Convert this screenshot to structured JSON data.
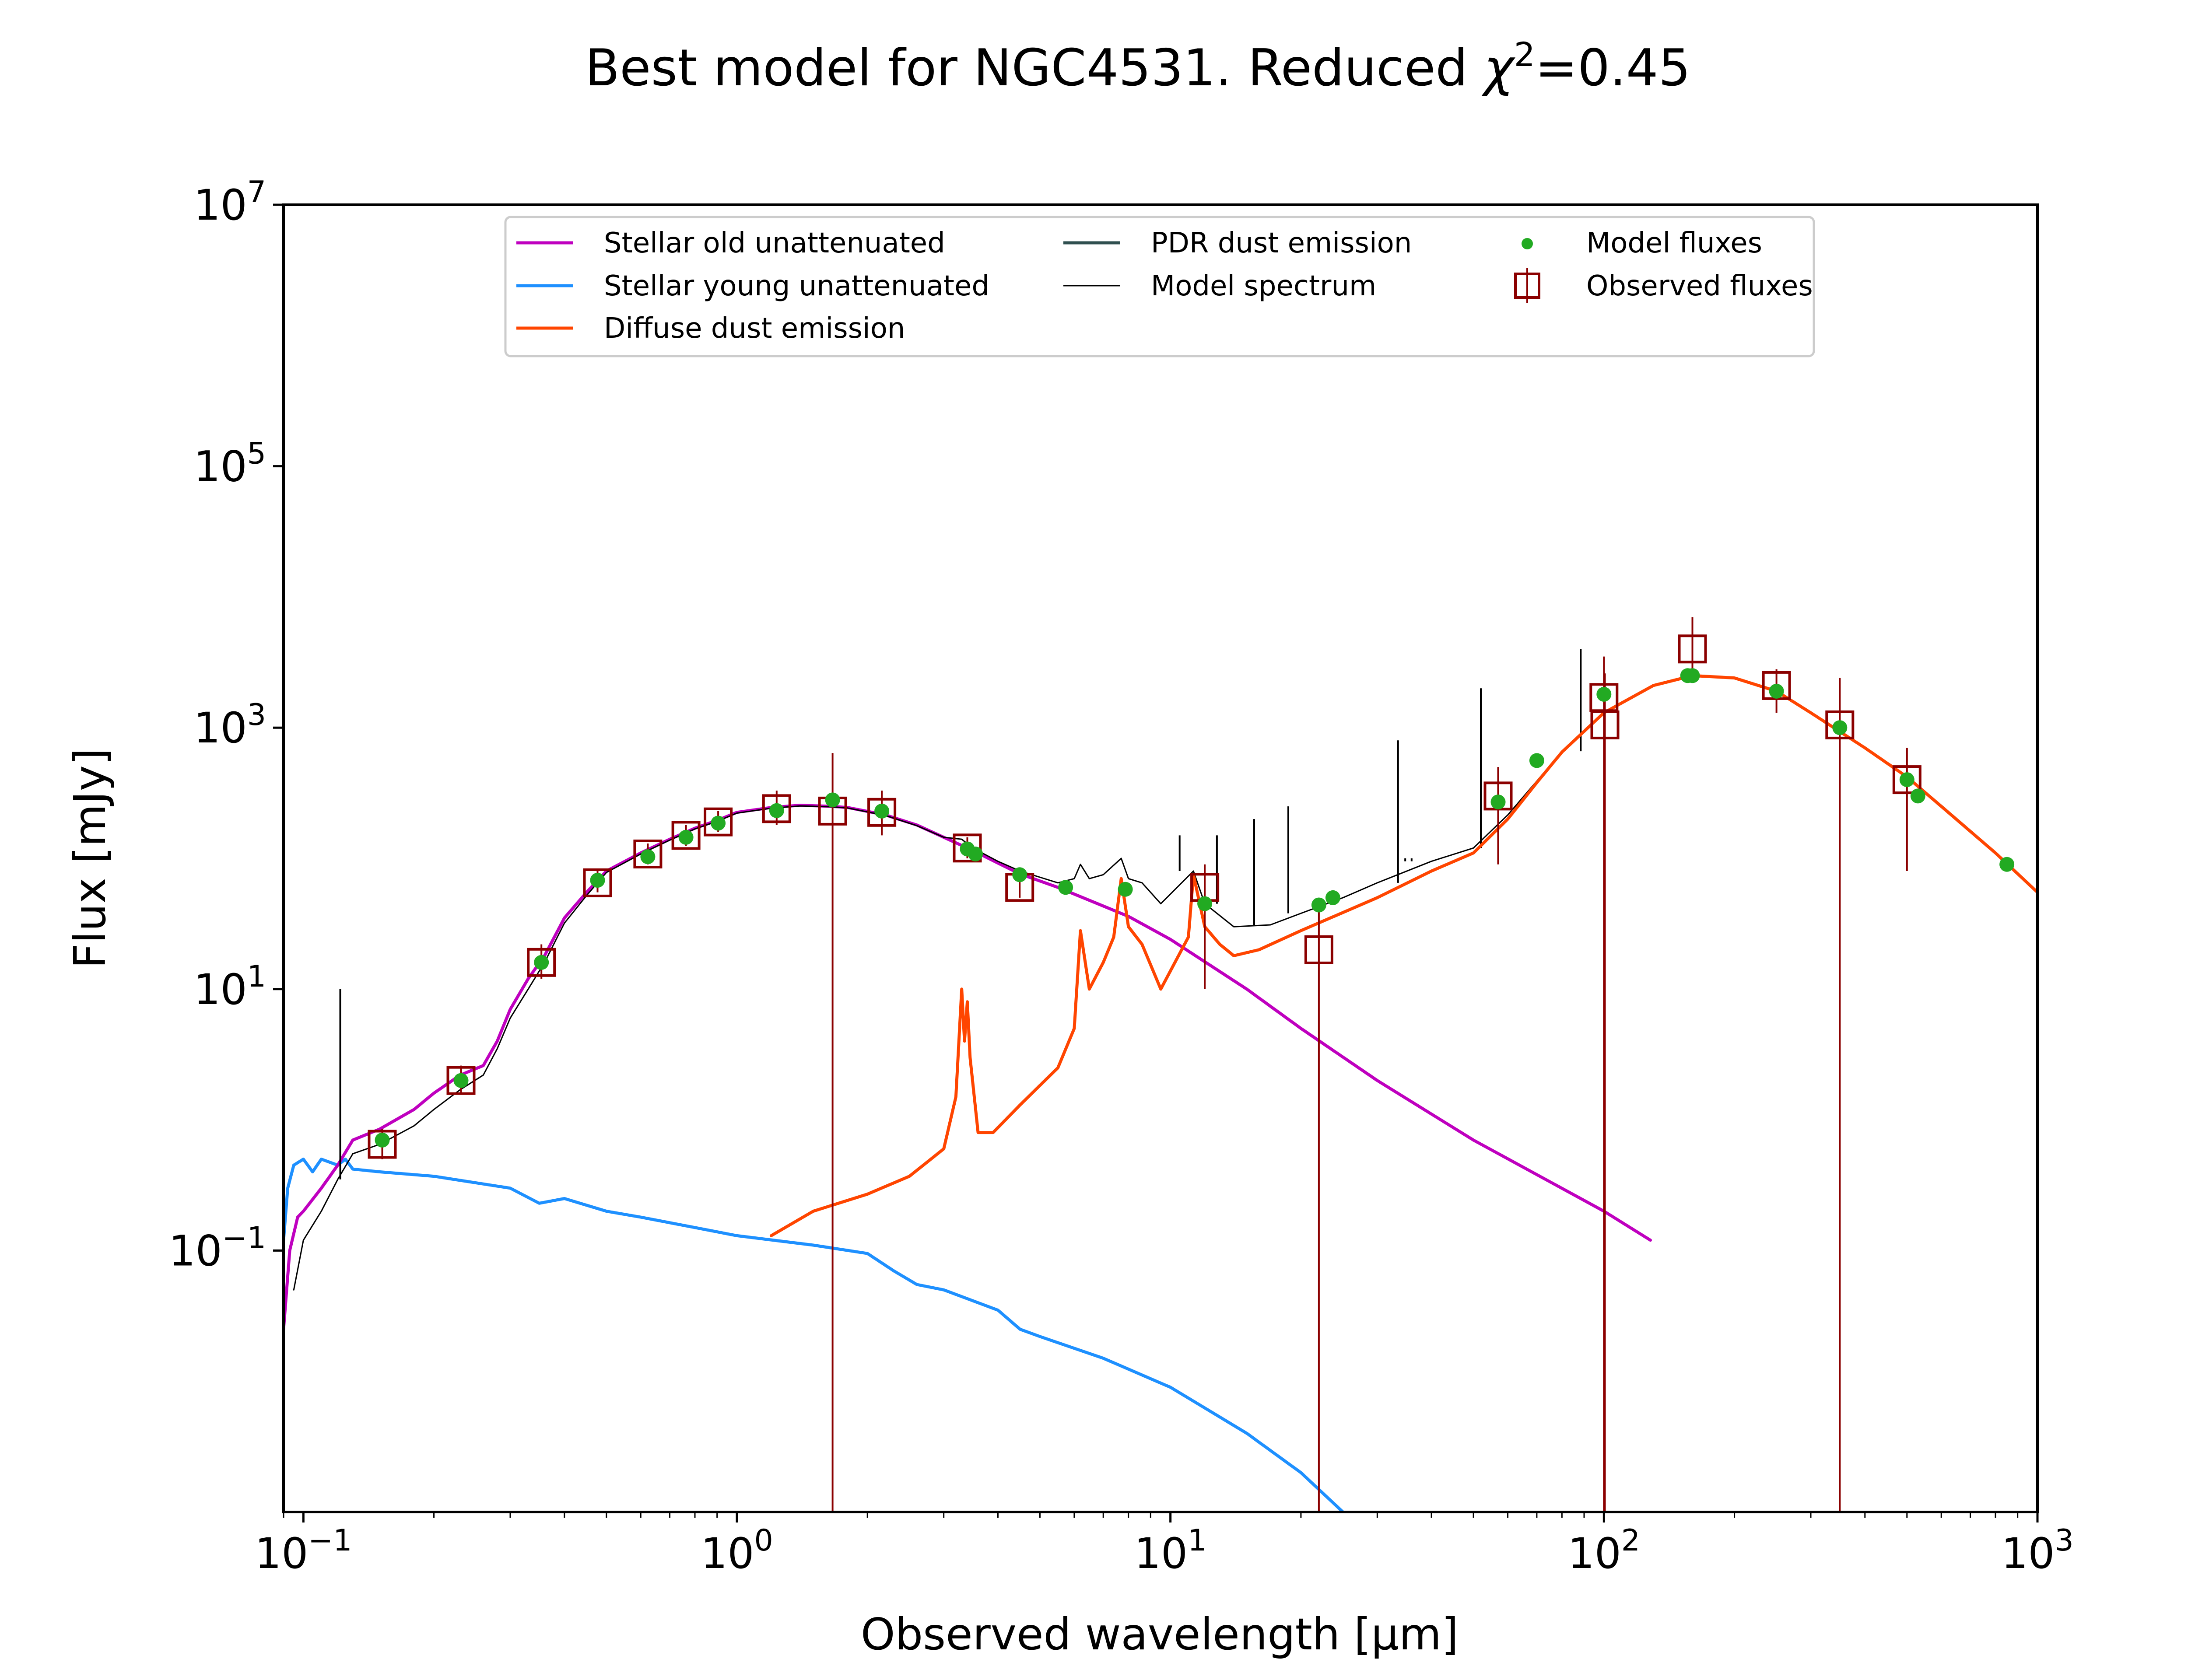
{
  "chart_data": {
    "type": "line",
    "title": "Best model for NGC4531. Reduced χ²=0.45",
    "title_parts": {
      "main": "Best model for NGC4531. Reduced ",
      "chi": "χ",
      "sup": "2",
      "tail": "=0.45"
    },
    "xlabel": "Observed wavelength [μm]",
    "ylabel": "Flux [mJy]",
    "xscale": "log",
    "yscale": "log",
    "xlim": [
      0.09,
      1000
    ],
    "ylim": [
      0.001,
      10000000
    ],
    "grid": false,
    "legend_position": "top-center",
    "x_ticks": [
      {
        "value": 0.1,
        "base": "10",
        "exp": "−1"
      },
      {
        "value": 1,
        "base": "10",
        "exp": "0"
      },
      {
        "value": 10,
        "base": "10",
        "exp": "1"
      },
      {
        "value": 100,
        "base": "10",
        "exp": "2"
      },
      {
        "value": 1000,
        "base": "10",
        "exp": "3"
      }
    ],
    "y_ticks": [
      {
        "value": 0.1,
        "base": "10",
        "exp": "−1"
      },
      {
        "value": 10,
        "base": "10",
        "exp": "1"
      },
      {
        "value": 1000,
        "base": "10",
        "exp": "3"
      },
      {
        "value": 100000,
        "base": "10",
        "exp": "5"
      },
      {
        "value": 10000000,
        "base": "10",
        "exp": "7"
      }
    ],
    "series": [
      {
        "name": "Stellar old unattenuated",
        "color": "#bf00bf",
        "points": [
          [
            0.09,
            0.025
          ],
          [
            0.093,
            0.1
          ],
          [
            0.097,
            0.18
          ],
          [
            0.1,
            0.2
          ],
          [
            0.11,
            0.3
          ],
          [
            0.12,
            0.45
          ],
          [
            0.13,
            0.7
          ],
          [
            0.15,
            0.85
          ],
          [
            0.18,
            1.2
          ],
          [
            0.2,
            1.6
          ],
          [
            0.23,
            2.2
          ],
          [
            0.26,
            2.6
          ],
          [
            0.28,
            4
          ],
          [
            0.3,
            7
          ],
          [
            0.33,
            12
          ],
          [
            0.36,
            18
          ],
          [
            0.4,
            35
          ],
          [
            0.45,
            55
          ],
          [
            0.5,
            80
          ],
          [
            0.6,
            110
          ],
          [
            0.7,
            140
          ],
          [
            0.8,
            170
          ],
          [
            0.9,
            195
          ],
          [
            1.0,
            225
          ],
          [
            1.2,
            245
          ],
          [
            1.4,
            255
          ],
          [
            1.65,
            250
          ],
          [
            1.8,
            245
          ],
          [
            2.2,
            215
          ],
          [
            2.6,
            180
          ],
          [
            3.0,
            145
          ],
          [
            3.5,
            115
          ],
          [
            4.0,
            92
          ],
          [
            4.5,
            76
          ],
          [
            5.5,
            60
          ],
          [
            8.0,
            36
          ],
          [
            10,
            24
          ],
          [
            15,
            10
          ],
          [
            20,
            5
          ],
          [
            30,
            2
          ],
          [
            50,
            0.7
          ],
          [
            100,
            0.2
          ],
          [
            128,
            0.12
          ]
        ]
      },
      {
        "name": "Stellar young unattenuated",
        "color": "#1e90ff",
        "points": [
          [
            0.09,
            0.12
          ],
          [
            0.092,
            0.3
          ],
          [
            0.095,
            0.45
          ],
          [
            0.1,
            0.5
          ],
          [
            0.105,
            0.4
          ],
          [
            0.11,
            0.5
          ],
          [
            0.12,
            0.45
          ],
          [
            0.125,
            0.5
          ],
          [
            0.13,
            0.42
          ],
          [
            0.15,
            0.4
          ],
          [
            0.2,
            0.37
          ],
          [
            0.3,
            0.3
          ],
          [
            0.35,
            0.23
          ],
          [
            0.4,
            0.25
          ],
          [
            0.5,
            0.2
          ],
          [
            0.6,
            0.18
          ],
          [
            0.8,
            0.15
          ],
          [
            1.0,
            0.13
          ],
          [
            1.5,
            0.11
          ],
          [
            2.0,
            0.095
          ],
          [
            2.3,
            0.07
          ],
          [
            2.6,
            0.055
          ],
          [
            3.0,
            0.05
          ],
          [
            4.0,
            0.035
          ],
          [
            4.5,
            0.025
          ],
          [
            5.0,
            0.022
          ],
          [
            7.0,
            0.015
          ],
          [
            10,
            0.009
          ],
          [
            15,
            0.004
          ],
          [
            20,
            0.002
          ],
          [
            25,
            0.001
          ]
        ]
      },
      {
        "name": "Diffuse dust emission",
        "color": "#ff4500",
        "points": [
          [
            1.2,
            0.13
          ],
          [
            1.5,
            0.2
          ],
          [
            2.0,
            0.27
          ],
          [
            2.5,
            0.37
          ],
          [
            3.0,
            0.6
          ],
          [
            3.2,
            1.5
          ],
          [
            3.3,
            10
          ],
          [
            3.35,
            4
          ],
          [
            3.4,
            8
          ],
          [
            3.45,
            3
          ],
          [
            3.6,
            0.8
          ],
          [
            3.9,
            0.8
          ],
          [
            4.5,
            1.3
          ],
          [
            5.5,
            2.5
          ],
          [
            6.0,
            5
          ],
          [
            6.2,
            28
          ],
          [
            6.5,
            10
          ],
          [
            7.0,
            16
          ],
          [
            7.4,
            25
          ],
          [
            7.7,
            70
          ],
          [
            8.0,
            30
          ],
          [
            8.6,
            22
          ],
          [
            9.5,
            10
          ],
          [
            11.0,
            25
          ],
          [
            11.3,
            75
          ],
          [
            12.0,
            30
          ],
          [
            13.0,
            22
          ],
          [
            14.0,
            18
          ],
          [
            16.0,
            20
          ],
          [
            20,
            28
          ],
          [
            30,
            50
          ],
          [
            40,
            80
          ],
          [
            50,
            110
          ],
          [
            60,
            200
          ],
          [
            70,
            380
          ],
          [
            80,
            650
          ],
          [
            100,
            1300
          ],
          [
            130,
            2100
          ],
          [
            160,
            2500
          ],
          [
            200,
            2400
          ],
          [
            250,
            1900
          ],
          [
            300,
            1300
          ],
          [
            400,
            700
          ],
          [
            500,
            420
          ],
          [
            600,
            250
          ],
          [
            800,
            110
          ],
          [
            1000,
            55
          ]
        ]
      },
      {
        "name": "PDR dust emission",
        "color": "#2f4f4f",
        "points": []
      },
      {
        "name": "Model spectrum",
        "color": "#000000",
        "points": [
          [
            0.095,
            0.05
          ],
          [
            0.1,
            0.12
          ],
          [
            0.11,
            0.2
          ],
          [
            0.12,
            0.35
          ],
          [
            0.13,
            0.55
          ],
          [
            0.15,
            0.65
          ],
          [
            0.18,
            0.9
          ],
          [
            0.2,
            1.2
          ],
          [
            0.23,
            1.7
          ],
          [
            0.26,
            2.2
          ],
          [
            0.28,
            3.5
          ],
          [
            0.3,
            6
          ],
          [
            0.33,
            10
          ],
          [
            0.36,
            16
          ],
          [
            0.4,
            32
          ],
          [
            0.45,
            52
          ],
          [
            0.5,
            78
          ],
          [
            0.6,
            108
          ],
          [
            0.7,
            138
          ],
          [
            0.8,
            168
          ],
          [
            0.9,
            192
          ],
          [
            1.0,
            222
          ],
          [
            1.2,
            242
          ],
          [
            1.4,
            252
          ],
          [
            1.65,
            248
          ],
          [
            1.8,
            243
          ],
          [
            2.2,
            213
          ],
          [
            2.6,
            178
          ],
          [
            3.0,
            145
          ],
          [
            3.3,
            140
          ],
          [
            3.5,
            120
          ],
          [
            4.0,
            95
          ],
          [
            4.5,
            80
          ],
          [
            5.5,
            65
          ],
          [
            6.0,
            70
          ],
          [
            6.2,
            90
          ],
          [
            6.5,
            70
          ],
          [
            7.0,
            75
          ],
          [
            7.7,
            100
          ],
          [
            8.0,
            70
          ],
          [
            8.6,
            65
          ],
          [
            9.5,
            45
          ],
          [
            11.3,
            80
          ],
          [
            12,
            45
          ],
          [
            14,
            30
          ],
          [
            17,
            31
          ],
          [
            20,
            38
          ],
          [
            25,
            50
          ],
          [
            30,
            65
          ],
          [
            40,
            95
          ],
          [
            50,
            120
          ],
          [
            60,
            215
          ],
          [
            70,
            390
          ],
          [
            80,
            660
          ],
          [
            100,
            1310
          ],
          [
            130,
            2110
          ],
          [
            160,
            2510
          ],
          [
            200,
            2410
          ],
          [
            250,
            1910
          ],
          [
            300,
            1310
          ],
          [
            400,
            710
          ],
          [
            500,
            425
          ],
          [
            600,
            255
          ],
          [
            800,
            112
          ],
          [
            1000,
            56
          ]
        ]
      }
    ],
    "spectrum_emission_lines": [
      [
        0.1216,
        10
      ],
      [
        33.5,
        800
      ],
      [
        52.0,
        2000
      ],
      [
        88.4,
        4000
      ],
      [
        12.8,
        150
      ],
      [
        15.6,
        200
      ],
      [
        18.7,
        250
      ],
      [
        10.5,
        150
      ],
      [
        34.8,
        100
      ],
      [
        36.0,
        100
      ]
    ],
    "model_fluxes": {
      "name": "Model fluxes",
      "color": "#22aa22",
      "points": [
        [
          0.152,
          0.7
        ],
        [
          0.231,
          2.0
        ],
        [
          0.354,
          16
        ],
        [
          0.477,
          68
        ],
        [
          0.623,
          103
        ],
        [
          0.763,
          145
        ],
        [
          0.905,
          186
        ],
        [
          1.235,
          232
        ],
        [
          1.662,
          280
        ],
        [
          2.159,
          230
        ],
        [
          3.4,
          118
        ],
        [
          3.55,
          108
        ],
        [
          4.49,
          75
        ],
        [
          5.73,
          60
        ],
        [
          7.87,
          58
        ],
        [
          12.0,
          45
        ],
        [
          22.0,
          44
        ],
        [
          23.7,
          50
        ],
        [
          57.0,
          270
        ],
        [
          70.0,
          560
        ],
        [
          100.0,
          1800
        ],
        [
          156.0,
          2500
        ],
        [
          160.0,
          2500
        ],
        [
          250.0,
          1900
        ],
        [
          350.0,
          1000
        ],
        [
          500.0,
          400
        ],
        [
          530.0,
          300
        ],
        [
          850.0,
          90
        ]
      ]
    },
    "observed_fluxes": {
      "name": "Observed fluxes",
      "color": "#8b0000",
      "points": [
        {
          "x": 0.152,
          "y": 0.65,
          "err_lo": 0.5,
          "err_hi": 0.85
        },
        {
          "x": 0.231,
          "y": 2.0,
          "err_lo": 1.6,
          "err_hi": 2.6
        },
        {
          "x": 0.354,
          "y": 16,
          "err_lo": 12,
          "err_hi": 22
        },
        {
          "x": 0.477,
          "y": 65,
          "err_lo": 55,
          "err_hi": 80
        },
        {
          "x": 0.623,
          "y": 108,
          "err_lo": 90,
          "err_hi": 130
        },
        {
          "x": 0.763,
          "y": 150,
          "err_lo": 125,
          "err_hi": 180
        },
        {
          "x": 0.905,
          "y": 190,
          "err_lo": 160,
          "err_hi": 230
        },
        {
          "x": 1.235,
          "y": 240,
          "err_lo": 180,
          "err_hi": 330
        },
        {
          "x": 1.662,
          "y": 230,
          "err_lo": 0.001,
          "err_hi": 640
        },
        {
          "x": 2.159,
          "y": 225,
          "err_lo": 150,
          "err_hi": 330
        },
        {
          "x": 3.4,
          "y": 120,
          "err_lo": 100,
          "err_hi": 145
        },
        {
          "x": 4.49,
          "y": 60,
          "err_lo": 50,
          "err_hi": 75
        },
        {
          "x": 12.0,
          "y": 60,
          "err_lo": 10,
          "err_hi": 90
        },
        {
          "x": 22.0,
          "y": 20,
          "err_lo": 0.001,
          "err_hi": 40
        },
        {
          "x": 57.0,
          "y": 300,
          "err_lo": 90,
          "err_hi": 500
        },
        {
          "x": 100.0,
          "y": 1700,
          "err_lo": 0.001,
          "err_hi": 3500
        },
        {
          "x": 100.5,
          "y": 1050,
          "err_lo": 0.001,
          "err_hi": 2600
        },
        {
          "x": 160.0,
          "y": 4000,
          "err_lo": 2300,
          "err_hi": 7000
        },
        {
          "x": 250.0,
          "y": 2100,
          "err_lo": 1300,
          "err_hi": 2800
        },
        {
          "x": 350.0,
          "y": 1050,
          "err_lo": 0.001,
          "err_hi": 2400
        },
        {
          "x": 500.0,
          "y": 400,
          "err_lo": 80,
          "err_hi": 700
        }
      ]
    }
  }
}
